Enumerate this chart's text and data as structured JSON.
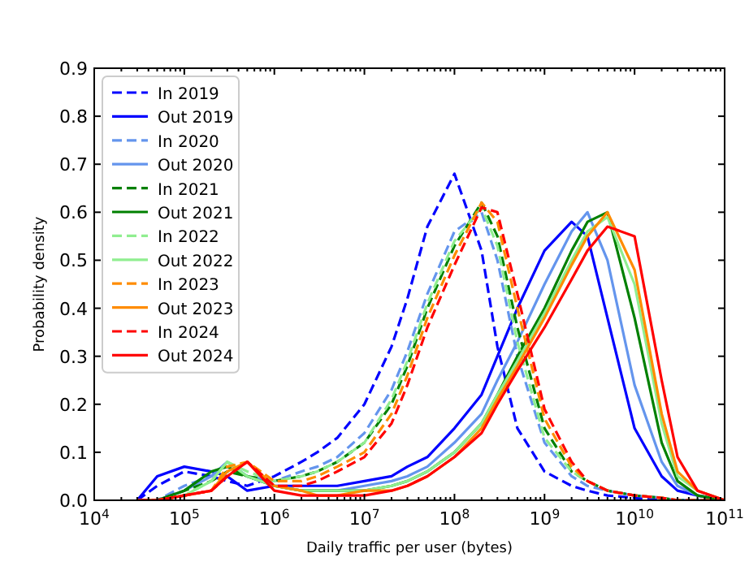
{
  "chart_data": {
    "type": "line",
    "xlabel": "Daily traffic per user (bytes)",
    "ylabel": "Probability density",
    "log": "x",
    "legend": "top left",
    "grid": false,
    "xlim": [
      10000,
      100000000000
    ],
    "ylim": [
      0,
      0.9
    ],
    "xticks": [
      {
        "value": 10000,
        "label": "10$^{4}$"
      },
      {
        "value": 20000,
        "label": null
      },
      {
        "value": 30000,
        "label": null
      },
      {
        "value": 40000,
        "label": null
      },
      {
        "value": 50000,
        "label": null
      },
      {
        "value": 60000,
        "label": null
      },
      {
        "value": 70000,
        "label": null
      },
      {
        "value": 80000,
        "label": null
      },
      {
        "value": 90000,
        "label": null
      },
      {
        "value": 100000,
        "label": "10$^{5}$"
      },
      {
        "value": 200000,
        "label": null
      },
      {
        "value": 300000,
        "label": null
      },
      {
        "value": 400000,
        "label": null
      },
      {
        "value": 500000,
        "label": null
      },
      {
        "value": 600000,
        "label": null
      },
      {
        "value": 700000,
        "label": null
      },
      {
        "value": 800000,
        "label": null
      },
      {
        "value": 900000,
        "label": null
      },
      {
        "value": 1000000,
        "label": "10$^{6}$"
      },
      {
        "value": 2000000,
        "label": null
      },
      {
        "value": 3000000,
        "label": null
      },
      {
        "value": 4000000,
        "label": null
      },
      {
        "value": 5000000,
        "label": null
      },
      {
        "value": 6000000,
        "label": null
      },
      {
        "value": 7000000,
        "label": null
      },
      {
        "value": 8000000,
        "label": null
      },
      {
        "value": 9000000,
        "label": null
      },
      {
        "value": 10000000,
        "label": "10$^{7}$"
      },
      {
        "value": 20000000,
        "label": null
      },
      {
        "value": 30000000,
        "label": null
      },
      {
        "value": 40000000,
        "label": null
      },
      {
        "value": 50000000,
        "label": null
      },
      {
        "value": 60000000,
        "label": null
      },
      {
        "value": 70000000,
        "label": null
      },
      {
        "value": 80000000,
        "label": null
      },
      {
        "value": 90000000,
        "label": null
      },
      {
        "value": 100000000,
        "label": "10$^{8}$"
      },
      {
        "value": 200000000,
        "label": null
      },
      {
        "value": 300000000,
        "label": null
      },
      {
        "value": 400000000,
        "label": null
      },
      {
        "value": 500000000,
        "label": null
      },
      {
        "value": 600000000,
        "label": null
      },
      {
        "value": 700000000,
        "label": null
      },
      {
        "value": 800000000,
        "label": null
      },
      {
        "value": 900000000,
        "label": null
      },
      {
        "value": 1000000000,
        "label": "10$^{9}$"
      },
      {
        "value": 2000000000,
        "label": null
      },
      {
        "value": 3000000000,
        "label": null
      },
      {
        "value": 4000000000,
        "label": null
      },
      {
        "value": 5000000000,
        "label": null
      },
      {
        "value": 6000000000,
        "label": null
      },
      {
        "value": 7000000000,
        "label": null
      },
      {
        "value": 8000000000,
        "label": null
      },
      {
        "value": 9000000000,
        "label": null
      },
      {
        "value": 10000000000,
        "label": "10$^{10}$"
      },
      {
        "value": 20000000000,
        "label": null
      },
      {
        "value": 30000000000,
        "label": null
      },
      {
        "value": 40000000000,
        "label": null
      },
      {
        "value": 50000000000,
        "label": null
      },
      {
        "value": 60000000000,
        "label": null
      },
      {
        "value": 70000000000,
        "label": null
      },
      {
        "value": 80000000000,
        "label": null
      },
      {
        "value": 90000000000,
        "label": null
      },
      {
        "value": 100000000000,
        "label": "10$^{11}$"
      }
    ],
    "yticks": [
      {
        "value": 0,
        "label": "0.0"
      },
      0.1,
      0.2,
      0.3,
      0.4,
      0.5,
      0.6,
      0.7,
      0.8,
      0.9
    ],
    "x": [
      30000,
      50000,
      100000,
      200000,
      300000,
      500000,
      1000000,
      2000000,
      3000000,
      5000000,
      10000000,
      20000000,
      30000000,
      50000000,
      100000000,
      200000000,
      300000000,
      500000000,
      1000000000,
      2000000000,
      3000000000,
      5000000000,
      10000000000,
      20000000000,
      30000000000,
      50000000000,
      100000000000
    ],
    "series": [
      {
        "name": "In 2019",
        "color": "#0000ff",
        "line_style": "dashed",
        "values": [
          0,
          0.03,
          0.06,
          0.05,
          0.04,
          0.03,
          0.05,
          0.08,
          0.1,
          0.13,
          0.2,
          0.32,
          0.42,
          0.57,
          0.68,
          0.52,
          0.32,
          0.15,
          0.06,
          0.03,
          0.02,
          0.01,
          0.005,
          0,
          0,
          0,
          0
        ]
      },
      {
        "name": "Out 2019",
        "color": "#0000ff",
        "line_style": "solid",
        "values": [
          0,
          0.05,
          0.07,
          0.06,
          0.05,
          0.02,
          0.03,
          0.03,
          0.03,
          0.03,
          0.04,
          0.05,
          0.07,
          0.09,
          0.15,
          0.22,
          0.3,
          0.4,
          0.52,
          0.58,
          0.55,
          0.38,
          0.15,
          0.05,
          0.02,
          0.01,
          0
        ]
      },
      {
        "name": "In 2020",
        "color": "#6495ed",
        "line_style": "dashed",
        "values": [
          0,
          0,
          0.03,
          0.05,
          0.08,
          0.05,
          0.04,
          0.06,
          0.07,
          0.09,
          0.14,
          0.23,
          0.31,
          0.43,
          0.56,
          0.6,
          0.5,
          0.3,
          0.12,
          0.05,
          0.03,
          0.02,
          0.01,
          0.005,
          0,
          0,
          0
        ]
      },
      {
        "name": "Out 2020",
        "color": "#6495ed",
        "line_style": "solid",
        "values": [
          0,
          0,
          0.02,
          0.05,
          0.08,
          0.05,
          0.03,
          0.02,
          0.02,
          0.02,
          0.03,
          0.04,
          0.05,
          0.07,
          0.12,
          0.18,
          0.25,
          0.33,
          0.45,
          0.56,
          0.6,
          0.5,
          0.24,
          0.08,
          0.03,
          0.01,
          0
        ]
      },
      {
        "name": "In 2021",
        "color": "#008000",
        "line_style": "dashed",
        "values": [
          0,
          0,
          0.02,
          0.04,
          0.06,
          0.05,
          0.04,
          0.05,
          0.06,
          0.08,
          0.12,
          0.2,
          0.28,
          0.4,
          0.53,
          0.62,
          0.55,
          0.36,
          0.15,
          0.06,
          0.04,
          0.02,
          0.01,
          0.005,
          0,
          0,
          0
        ]
      },
      {
        "name": "Out 2021",
        "color": "#008000",
        "line_style": "solid",
        "values": [
          0,
          0,
          0.02,
          0.06,
          0.07,
          0.05,
          0.03,
          0.02,
          0.02,
          0.02,
          0.02,
          0.03,
          0.04,
          0.06,
          0.1,
          0.16,
          0.22,
          0.3,
          0.4,
          0.52,
          0.58,
          0.6,
          0.38,
          0.12,
          0.04,
          0.01,
          0
        ]
      },
      {
        "name": "In 2022",
        "color": "#90ee90",
        "line_style": "dashed",
        "values": [
          0,
          0,
          0.01,
          0.04,
          0.08,
          0.06,
          0.04,
          0.05,
          0.06,
          0.08,
          0.12,
          0.21,
          0.29,
          0.41,
          0.54,
          0.61,
          0.53,
          0.33,
          0.13,
          0.06,
          0.04,
          0.02,
          0.01,
          0.005,
          0,
          0,
          0
        ]
      },
      {
        "name": "Out 2022",
        "color": "#90ee90",
        "line_style": "solid",
        "values": [
          0,
          0,
          0.01,
          0.04,
          0.08,
          0.05,
          0.03,
          0.02,
          0.02,
          0.02,
          0.02,
          0.03,
          0.04,
          0.06,
          0.1,
          0.16,
          0.22,
          0.29,
          0.39,
          0.5,
          0.56,
          0.59,
          0.45,
          0.16,
          0.05,
          0.02,
          0
        ]
      },
      {
        "name": "In 2023",
        "color": "#ff8c00",
        "line_style": "dashed",
        "values": [
          0,
          0,
          0.01,
          0.02,
          0.07,
          0.08,
          0.04,
          0.04,
          0.05,
          0.07,
          0.1,
          0.18,
          0.26,
          0.38,
          0.51,
          0.62,
          0.58,
          0.4,
          0.17,
          0.07,
          0.04,
          0.02,
          0.01,
          0.005,
          0,
          0,
          0
        ]
      },
      {
        "name": "Out 2023",
        "color": "#ff8c00",
        "line_style": "solid",
        "values": [
          0,
          0,
          0.01,
          0.02,
          0.06,
          0.08,
          0.03,
          0.02,
          0.01,
          0.01,
          0.02,
          0.02,
          0.03,
          0.05,
          0.09,
          0.15,
          0.21,
          0.28,
          0.38,
          0.49,
          0.55,
          0.6,
          0.48,
          0.18,
          0.06,
          0.02,
          0
        ]
      },
      {
        "name": "In 2024",
        "color": "#ff0000",
        "line_style": "dashed",
        "values": [
          0,
          0,
          0.01,
          0.02,
          0.05,
          0.08,
          0.03,
          0.03,
          0.04,
          0.06,
          0.09,
          0.16,
          0.24,
          0.36,
          0.49,
          0.61,
          0.6,
          0.43,
          0.19,
          0.08,
          0.04,
          0.02,
          0.01,
          0.005,
          0,
          0,
          0
        ]
      },
      {
        "name": "Out 2024",
        "color": "#ff0000",
        "line_style": "solid",
        "values": [
          0,
          0,
          0.01,
          0.02,
          0.05,
          0.08,
          0.02,
          0.01,
          0.01,
          0.01,
          0.01,
          0.02,
          0.03,
          0.05,
          0.09,
          0.14,
          0.2,
          0.27,
          0.36,
          0.46,
          0.52,
          0.57,
          0.55,
          0.25,
          0.09,
          0.02,
          0
        ]
      }
    ]
  }
}
